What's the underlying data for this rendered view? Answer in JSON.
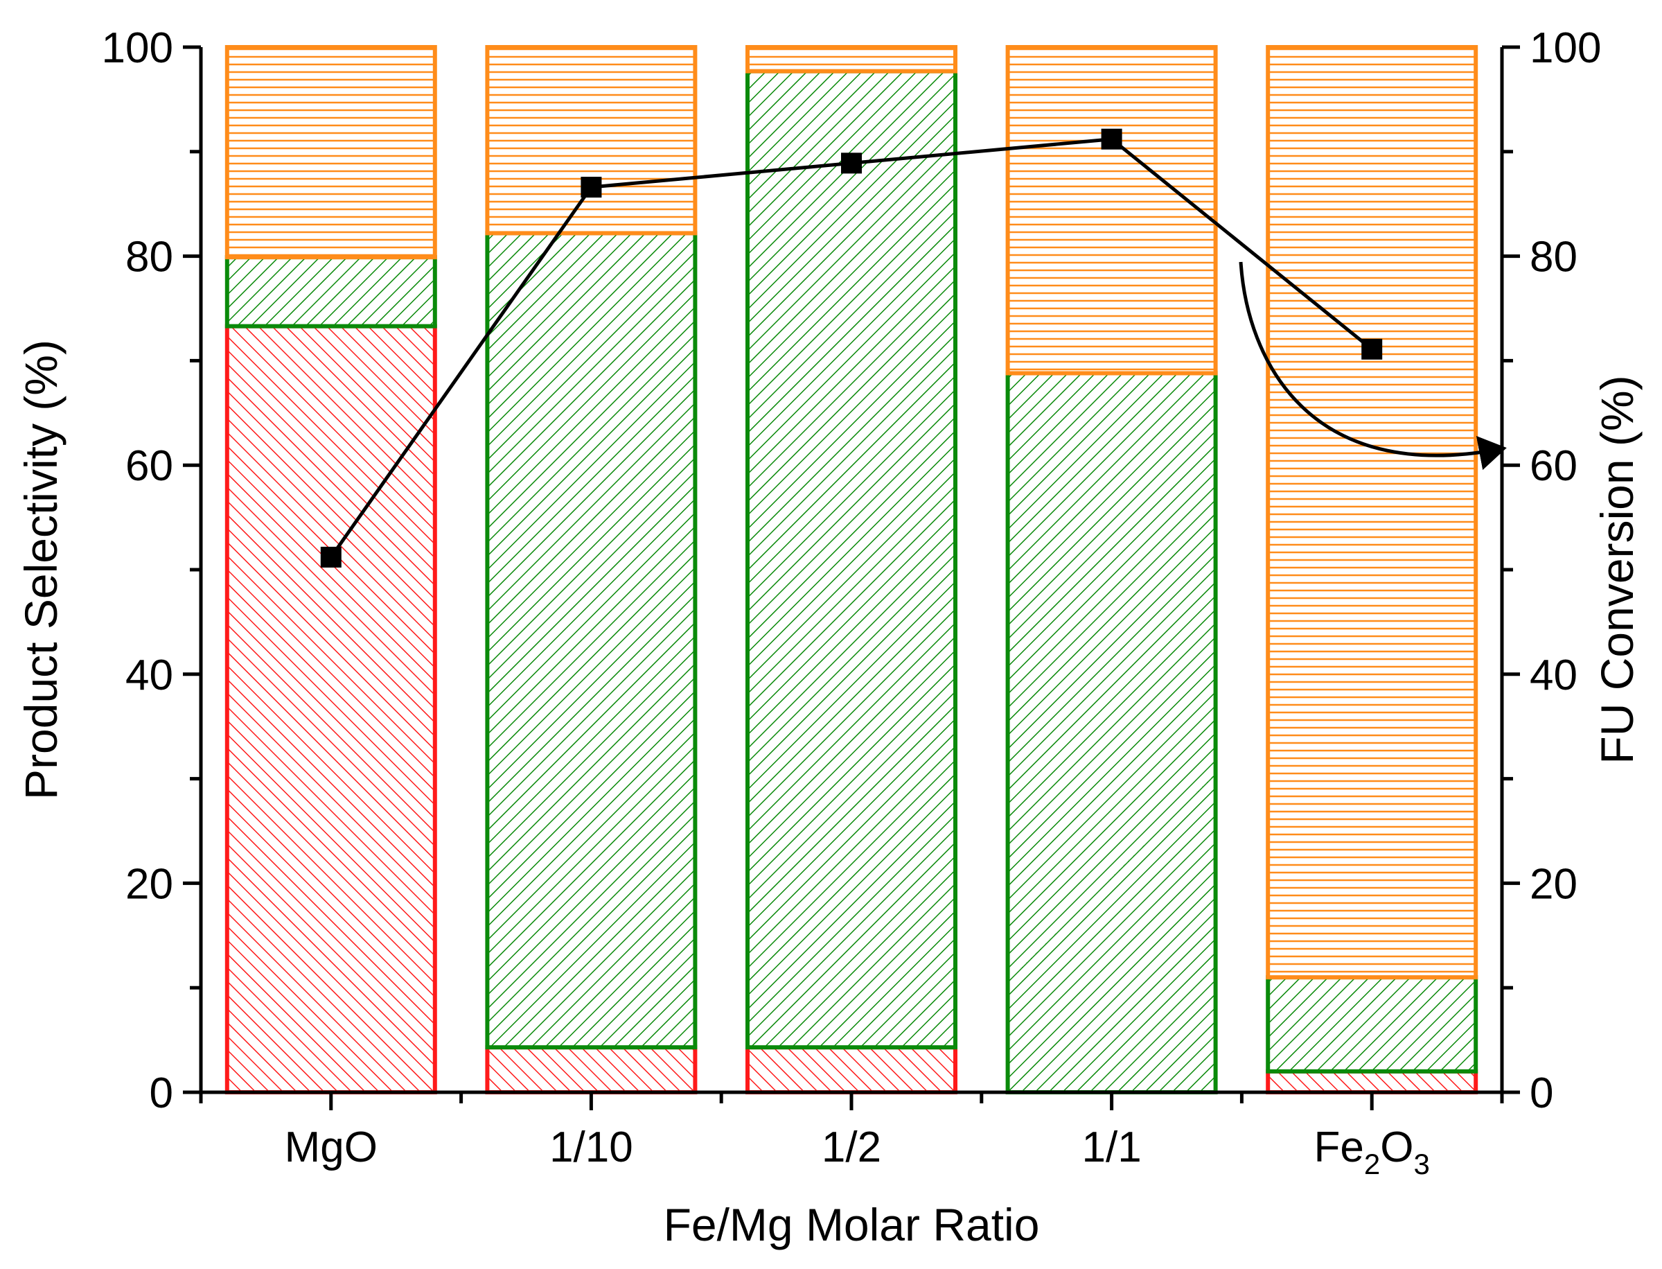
{
  "chart_data": {
    "type": "bar",
    "stacked": true,
    "xlabel": "Fe/Mg Molar Ratio",
    "ylabel_left": "Product Selectivity (%)",
    "ylabel_right": "FU Conversion (%)",
    "ylim": [
      0,
      100
    ],
    "y2lim": [
      0,
      100
    ],
    "y_ticks": [
      "0",
      "20",
      "40",
      "60",
      "80",
      "100"
    ],
    "y2_ticks": [
      "0",
      "20",
      "40",
      "60",
      "80",
      "100"
    ],
    "categories": [
      {
        "label": "MgO",
        "base": "",
        "sub": ""
      },
      {
        "label": "1/10",
        "base": "",
        "sub": ""
      },
      {
        "label": "1/2",
        "base": "",
        "sub": ""
      },
      {
        "label": "1/1",
        "base": "",
        "sub": ""
      },
      {
        "label": "",
        "base": "Fe",
        "sub": "2",
        "base2": "O",
        "sub2": "3"
      }
    ],
    "series": [
      {
        "name": "red-segment",
        "color": "#ff1a1a",
        "hatch": "diagonal-right",
        "values": [
          73.3,
          4.3,
          4.3,
          0,
          2.0
        ]
      },
      {
        "name": "green-segment",
        "color": "#0a8a0a",
        "hatch": "diagonal-left",
        "values": [
          6.6,
          77.9,
          93.4,
          68.8,
          9.0
        ]
      },
      {
        "name": "orange-segment",
        "color": "#ff8c1a",
        "hatch": "horizontal",
        "values": [
          20.1,
          17.8,
          2.3,
          31.2,
          89.0
        ]
      }
    ],
    "line_series": {
      "name": "FU Conversion",
      "axis": "right",
      "color": "#000000",
      "marker": "square",
      "values": [
        51.2,
        86.6,
        88.9,
        91.2,
        71.1
      ]
    },
    "annotation": {
      "type": "curved-arrow",
      "meaning": "line refers to right axis"
    }
  }
}
